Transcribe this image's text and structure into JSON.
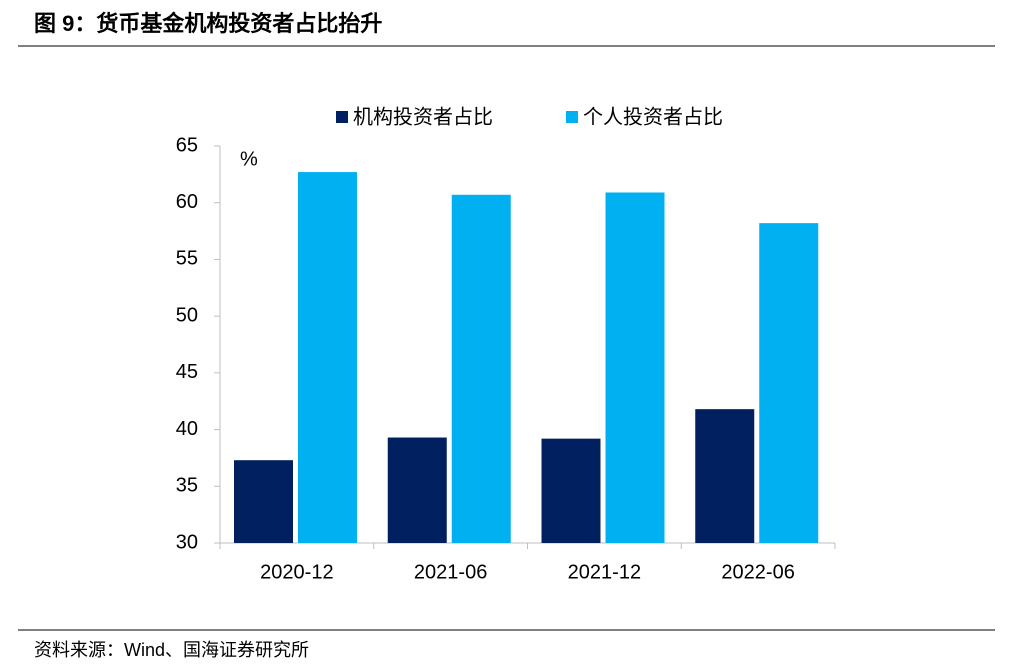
{
  "chart_data": {
    "type": "bar",
    "title": "图 9：货币基金机构投资者占比抬升",
    "y_label": "%",
    "source": "资料来源：Wind、国海证券研究所",
    "categories": [
      "2020-12",
      "2021-06",
      "2021-12",
      "2022-06"
    ],
    "series": [
      {
        "name": "机构投资者占比",
        "color": "#002060",
        "values": [
          37.3,
          39.3,
          39.2,
          41.8
        ]
      },
      {
        "name": "个人投资者占比",
        "color": "#00b0f0",
        "values": [
          62.7,
          60.7,
          60.9,
          58.2
        ]
      }
    ],
    "ylim": [
      30,
      65
    ],
    "yticks": [
      30,
      35,
      40,
      45,
      50,
      55,
      60,
      65
    ],
    "grid": false
  }
}
